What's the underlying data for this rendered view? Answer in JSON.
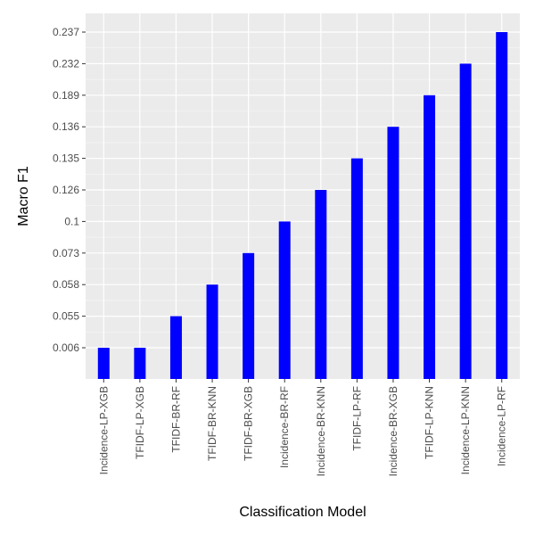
{
  "chart_data": {
    "type": "bar",
    "title": "",
    "xlabel": "Classification Model",
    "ylabel": "Macro F1",
    "categories": [
      "Incidence-LP-XGB",
      "TFIDF-LP-XGB",
      "TFIDF-BR-RF",
      "TFIDF-BR-KNN",
      "TFIDF-BR-XGB",
      "Incidence-BR-RF",
      "Incidence-BR-KNN",
      "TFIDF-LP-RF",
      "Incidence-BR-XGB",
      "TFIDF-LP-KNN",
      "Incidence-LP-KNN",
      "Incidence-LP-RF"
    ],
    "y_tick_labels": [
      "0.006",
      "0.055",
      "0.058",
      "0.073",
      "0.1",
      "0.126",
      "0.135",
      "0.136",
      "0.189",
      "0.232",
      "0.237"
    ],
    "value_labels": [
      "0.006",
      "0.006",
      "0.055",
      "0.058",
      "0.073",
      "0.1",
      "0.126",
      "0.135",
      "0.136",
      "0.189",
      "0.232",
      "0.237"
    ],
    "y_scale": "categorical (discrete, evenly spaced levels)",
    "grid": true,
    "legend": "none",
    "bar_color": "#0000ff",
    "panel_background": "#ebebeb",
    "grid_color": "#ffffff"
  }
}
